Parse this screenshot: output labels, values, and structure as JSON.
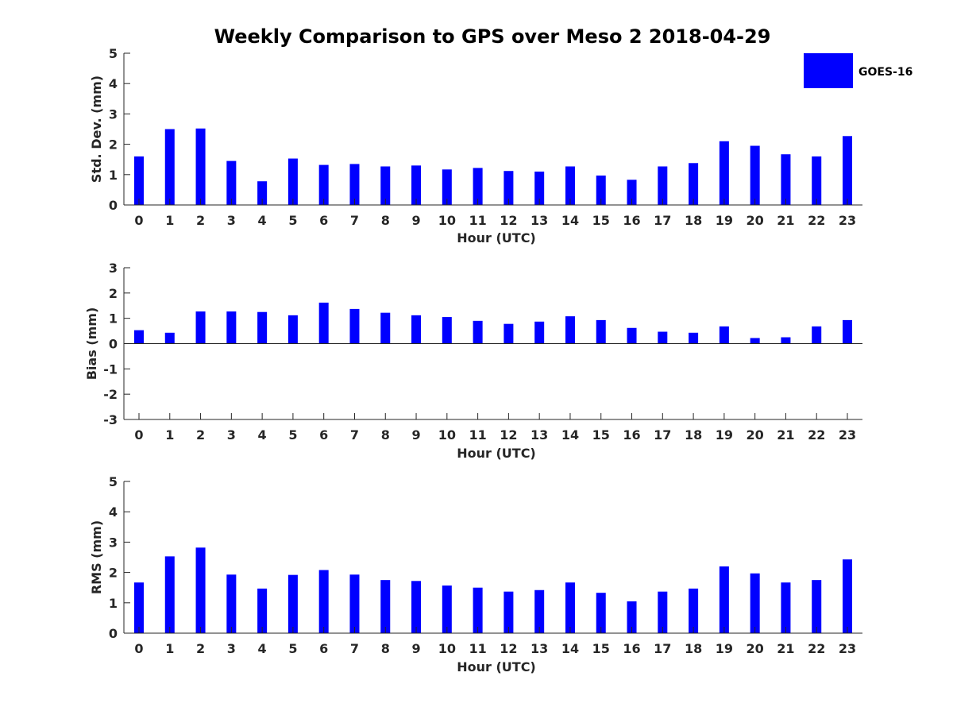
{
  "chart_data": {
    "title": "Weekly Comparison to GPS over Meso 2 2018-04-29",
    "legend": {
      "label": "GOES-16",
      "color": "#0000ff",
      "placement": "top-right"
    },
    "panels": [
      {
        "type": "bar",
        "ylabel": "Std. Dev. (mm)",
        "xlabel": "Hour (UTC)",
        "ylim": [
          0,
          5
        ],
        "yticks": [
          0,
          1,
          2,
          3,
          4,
          5
        ],
        "categories": [
          "0",
          "1",
          "2",
          "3",
          "4",
          "5",
          "6",
          "7",
          "8",
          "9",
          "10",
          "11",
          "12",
          "13",
          "14",
          "15",
          "16",
          "17",
          "18",
          "19",
          "20",
          "21",
          "22",
          "23"
        ],
        "series": [
          {
            "name": "GOES-16",
            "values": [
              1.6,
              2.5,
              2.52,
              1.45,
              0.78,
              1.53,
              1.32,
              1.35,
              1.27,
              1.3,
              1.17,
              1.22,
              1.12,
              1.1,
              1.27,
              0.97,
              0.83,
              1.27,
              1.38,
              2.1,
              1.95,
              1.67,
              1.6,
              2.27
            ]
          }
        ]
      },
      {
        "type": "bar",
        "ylabel": "Bias (mm)",
        "xlabel": "Hour (UTC)",
        "ylim": [
          -3,
          3
        ],
        "yticks": [
          -3,
          -2,
          -1,
          0,
          1,
          2,
          3
        ],
        "zero_line": true,
        "categories": [
          "0",
          "1",
          "2",
          "3",
          "4",
          "5",
          "6",
          "7",
          "8",
          "9",
          "10",
          "11",
          "12",
          "13",
          "14",
          "15",
          "16",
          "17",
          "18",
          "19",
          "20",
          "21",
          "22",
          "23"
        ],
        "series": [
          {
            "name": "GOES-16",
            "values": [
              0.53,
              0.43,
              1.27,
              1.27,
              1.25,
              1.12,
              1.62,
              1.37,
              1.22,
              1.12,
              1.05,
              0.9,
              0.78,
              0.87,
              1.08,
              0.93,
              0.62,
              0.47,
              0.43,
              0.68,
              0.22,
              0.25,
              0.68,
              0.93
            ]
          }
        ]
      },
      {
        "type": "bar",
        "ylabel": "RMS (mm)",
        "xlabel": "Hour (UTC)",
        "ylim": [
          0,
          5
        ],
        "yticks": [
          0,
          1,
          2,
          3,
          4,
          5
        ],
        "categories": [
          "0",
          "1",
          "2",
          "3",
          "4",
          "5",
          "6",
          "7",
          "8",
          "9",
          "10",
          "11",
          "12",
          "13",
          "14",
          "15",
          "16",
          "17",
          "18",
          "19",
          "20",
          "21",
          "22",
          "23"
        ],
        "series": [
          {
            "name": "GOES-16",
            "values": [
              1.67,
              2.53,
              2.82,
              1.93,
              1.47,
              1.92,
              2.08,
              1.93,
              1.75,
              1.72,
              1.57,
              1.5,
              1.37,
              1.42,
              1.67,
              1.33,
              1.05,
              1.37,
              1.47,
              2.2,
              1.97,
              1.67,
              1.75,
              2.43
            ]
          }
        ]
      }
    ]
  }
}
